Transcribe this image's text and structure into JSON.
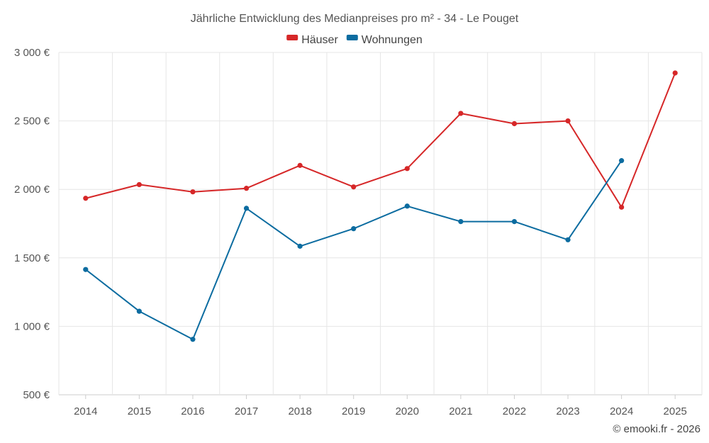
{
  "chart_data": {
    "type": "line",
    "title": "Jährliche Entwicklung des Medianpreises pro m² - 34 - Le Pouget",
    "categories": [
      "2014",
      "2015",
      "2016",
      "2017",
      "2018",
      "2019",
      "2020",
      "2021",
      "2022",
      "2023",
      "2024",
      "2025"
    ],
    "series": [
      {
        "name": "Häuser",
        "color": "#d62728",
        "values": [
          1935,
          2035,
          1982,
          2008,
          2175,
          2018,
          2152,
          2555,
          2480,
          2500,
          1870,
          2850
        ]
      },
      {
        "name": "Wohnungen",
        "color": "#0c6ca0",
        "values": [
          1415,
          1110,
          905,
          1862,
          1585,
          1713,
          1878,
          1765,
          1765,
          1632,
          2210,
          null
        ]
      }
    ],
    "ylim": [
      500,
      3000
    ],
    "yticks": [
      500,
      1000,
      1500,
      2000,
      2500,
      3000
    ],
    "ytick_labels": [
      "500 €",
      "1 000 €",
      "1 500 €",
      "2 000 €",
      "2 500 €",
      "3 000 €"
    ],
    "xlabel": "",
    "ylabel": "",
    "grid": true,
    "legend": "top-center"
  },
  "credit": "© emooki.fr - 2026"
}
